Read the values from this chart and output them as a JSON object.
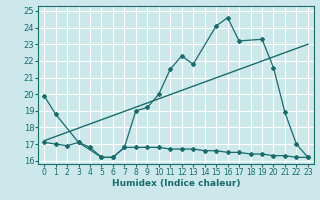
{
  "title": "",
  "xlabel": "Humidex (Indice chaleur)",
  "bg_color": "#cce8ea",
  "grid_color": "#ffffff",
  "line_color": "#1a6b6b",
  "xlim": [
    -0.5,
    23.5
  ],
  "ylim": [
    15.8,
    25.3
  ],
  "yticks": [
    16,
    17,
    18,
    19,
    20,
    21,
    22,
    23,
    24,
    25
  ],
  "xticks": [
    0,
    1,
    2,
    3,
    4,
    5,
    6,
    7,
    8,
    9,
    10,
    11,
    12,
    13,
    14,
    15,
    16,
    17,
    18,
    19,
    20,
    21,
    22,
    23
  ],
  "line1_x": [
    0,
    1,
    3,
    5,
    6,
    7,
    8,
    9,
    10,
    11,
    12,
    13,
    15,
    16,
    17,
    19,
    20,
    21,
    22,
    23
  ],
  "line1_y": [
    19.9,
    18.8,
    17.1,
    16.2,
    16.2,
    16.8,
    19.0,
    19.2,
    20.0,
    21.5,
    22.3,
    21.8,
    24.1,
    24.6,
    23.2,
    23.3,
    21.6,
    18.9,
    17.0,
    16.2
  ],
  "line2_x": [
    0,
    23
  ],
  "line2_y": [
    17.2,
    23.0
  ],
  "line3_x": [
    0,
    1,
    2,
    3,
    4,
    5,
    6,
    7,
    8,
    9,
    10,
    11,
    12,
    13,
    14,
    15,
    16,
    17,
    18,
    19,
    20,
    21,
    22,
    23
  ],
  "line3_y": [
    17.1,
    17.0,
    16.9,
    17.1,
    16.8,
    16.2,
    16.2,
    16.8,
    16.8,
    16.8,
    16.8,
    16.7,
    16.7,
    16.7,
    16.6,
    16.6,
    16.5,
    16.5,
    16.4,
    16.4,
    16.3,
    16.3,
    16.2,
    16.2
  ]
}
